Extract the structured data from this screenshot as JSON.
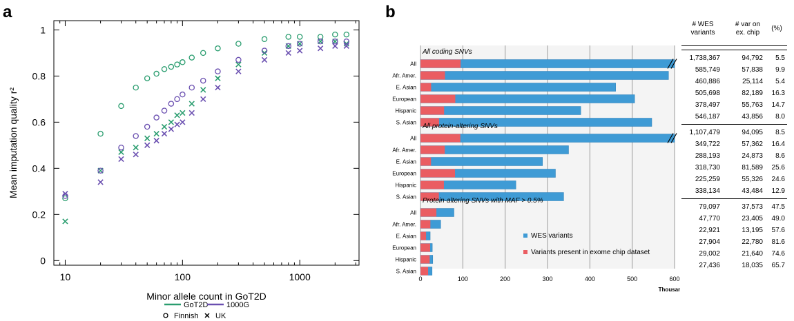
{
  "panel_a_label": "a",
  "panel_b_label": "b",
  "chart_data": [
    {
      "type": "scatter",
      "xlabel": "Minor allele count in GoT2D",
      "ylabel": "Mean imputation quality r²",
      "xscale": "log",
      "xlim": [
        8,
        3200
      ],
      "ylim": [
        -0.02,
        1.04
      ],
      "xticks": [
        "10",
        "100",
        "1000"
      ],
      "yticks": [
        "0",
        "0.2",
        "0.4",
        "0.6",
        "0.8",
        "1"
      ],
      "legend": {
        "lines": [
          {
            "name": "GoT2D",
            "color": "#2a9d6f"
          },
          {
            "name": "1000G",
            "color": "#6a4fb0"
          }
        ],
        "markers": [
          {
            "name": "Finnish",
            "symbol": "o"
          },
          {
            "name": "UK",
            "symbol": "x"
          }
        ]
      },
      "series": [
        {
          "name": "GoT2D Finnish",
          "color": "#2a9d6f",
          "marker": "o",
          "x": [
            10,
            20,
            30,
            40,
            50,
            60,
            70,
            80,
            90,
            100,
            120,
            150,
            200,
            300,
            500,
            800,
            1000,
            1500,
            2000,
            2500
          ],
          "y": [
            0.27,
            0.55,
            0.67,
            0.75,
            0.79,
            0.81,
            0.83,
            0.84,
            0.85,
            0.86,
            0.88,
            0.9,
            0.92,
            0.94,
            0.96,
            0.97,
            0.97,
            0.97,
            0.98,
            0.98
          ]
        },
        {
          "name": "GoT2D UK",
          "color": "#2a9d6f",
          "marker": "x",
          "x": [
            10,
            20,
            30,
            40,
            50,
            60,
            70,
            80,
            90,
            100,
            120,
            150,
            200,
            300,
            500,
            800,
            1000,
            1500,
            2000,
            2500
          ],
          "y": [
            0.17,
            0.39,
            0.47,
            0.49,
            0.53,
            0.55,
            0.58,
            0.6,
            0.63,
            0.64,
            0.68,
            0.74,
            0.79,
            0.85,
            0.9,
            0.93,
            0.94,
            0.95,
            0.95,
            0.94
          ]
        },
        {
          "name": "1000G Finnish",
          "color": "#6a4fb0",
          "marker": "o",
          "x": [
            10,
            20,
            30,
            40,
            50,
            60,
            70,
            80,
            90,
            100,
            120,
            150,
            200,
            300,
            500,
            800,
            1000,
            1500,
            2000,
            2500
          ],
          "y": [
            0.28,
            0.39,
            0.49,
            0.54,
            0.58,
            0.62,
            0.65,
            0.68,
            0.7,
            0.72,
            0.75,
            0.78,
            0.82,
            0.87,
            0.91,
            0.93,
            0.94,
            0.95,
            0.95,
            0.95
          ]
        },
        {
          "name": "1000G UK",
          "color": "#6a4fb0",
          "marker": "x",
          "x": [
            10,
            20,
            30,
            40,
            50,
            60,
            70,
            80,
            90,
            100,
            120,
            150,
            200,
            300,
            500,
            800,
            1000,
            1500,
            2000,
            2500
          ],
          "y": [
            0.29,
            0.34,
            0.44,
            0.46,
            0.5,
            0.52,
            0.55,
            0.57,
            0.59,
            0.6,
            0.64,
            0.7,
            0.75,
            0.82,
            0.87,
            0.9,
            0.91,
            0.92,
            0.93,
            0.93
          ]
        }
      ]
    },
    {
      "type": "bar",
      "orientation": "horizontal",
      "stacked_overlay": true,
      "xlabel": "Thousands",
      "xlim": [
        0,
        600
      ],
      "xticks": [
        "0",
        "100",
        "200",
        "300",
        "400",
        "500",
        "600"
      ],
      "legend": [
        {
          "name": "WES variants",
          "color": "#3f9bd5"
        },
        {
          "name": "Variants present in exome chip dataset",
          "color": "#ea5d62"
        }
      ],
      "groups": [
        {
          "title": "All coding SNVs",
          "categories": [
            "All",
            "Afr. Amer.",
            "E. Asian",
            "European",
            "Hispanic",
            "S. Asian"
          ],
          "wes": [
            1738.367,
            585.749,
            460.886,
            505.698,
            378.497,
            546.187
          ],
          "chip": [
            94.792,
            57.838,
            25.114,
            82.189,
            55.763,
            43.856
          ],
          "truncated": [
            true,
            false,
            false,
            false,
            false,
            false
          ]
        },
        {
          "title": "All protein-altering SNVs",
          "categories": [
            "All",
            "Afr. Amer.",
            "E. Asian",
            "European",
            "Hispanic",
            "S. Asian"
          ],
          "wes": [
            1107.479,
            349.722,
            288.193,
            318.73,
            225.259,
            338.134
          ],
          "chip": [
            94.095,
            57.362,
            24.873,
            81.589,
            55.326,
            43.484
          ],
          "truncated": [
            true,
            false,
            false,
            false,
            false,
            false
          ]
        },
        {
          "title": "Protein-altering SNVs with MAF > 0.5%",
          "categories": [
            "All",
            "Afr. Amer.",
            "E. Asian",
            "European",
            "Hispanic",
            "S. Asian"
          ],
          "wes": [
            79.097,
            47.77,
            22.921,
            27.904,
            29.002,
            27.436
          ],
          "chip": [
            37.573,
            23.405,
            13.195,
            22.78,
            21.64,
            18.035
          ],
          "truncated": [
            false,
            false,
            false,
            false,
            false,
            false
          ]
        }
      ]
    },
    {
      "type": "table",
      "columns": [
        "# WES variants",
        "# var on ex. chip",
        "(%)"
      ],
      "rows": [
        [
          "1,738,367",
          "94,792",
          "5.5"
        ],
        [
          "585,749",
          "57,838",
          "9.9"
        ],
        [
          "460,886",
          "25,114",
          "5.4"
        ],
        [
          "505,698",
          "82,189",
          "16.3"
        ],
        [
          "378,497",
          "55,763",
          "14.7"
        ],
        [
          "546,187",
          "43,856",
          "8.0"
        ],
        [
          "1,107,479",
          "94,095",
          "8.5"
        ],
        [
          "349,722",
          "57,362",
          "16.4"
        ],
        [
          "288,193",
          "24,873",
          "8.6"
        ],
        [
          "318,730",
          "81,589",
          "25.6"
        ],
        [
          "225,259",
          "55,326",
          "24.6"
        ],
        [
          "338,134",
          "43,484",
          "12.9"
        ],
        [
          "79,097",
          "37,573",
          "47.5"
        ],
        [
          "47,770",
          "23,405",
          "49.0"
        ],
        [
          "22,921",
          "13,195",
          "57.6"
        ],
        [
          "27,904",
          "22,780",
          "81.6"
        ],
        [
          "29,002",
          "21,640",
          "74.6"
        ],
        [
          "27,436",
          "18,035",
          "65.7"
        ]
      ]
    }
  ],
  "table_header": {
    "wes_line1": "# WES",
    "wes_line2": "variants",
    "chip_line1": "# var on",
    "chip_line2": "ex. chip",
    "pct": "(%)"
  }
}
